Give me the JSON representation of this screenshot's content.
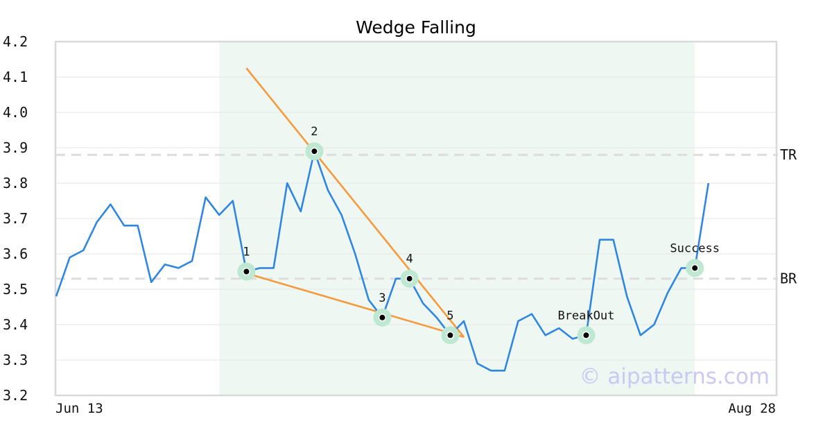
{
  "chart_data": {
    "type": "line",
    "title": "Wedge Falling",
    "xlabel": "",
    "ylabel": "",
    "ylim": [
      3.2,
      4.2
    ],
    "yticks": [
      "4.2",
      "4.1",
      "4.0",
      "3.9",
      "3.8",
      "3.7",
      "3.6",
      "3.5",
      "3.4",
      "3.3",
      "3.2"
    ],
    "x_start_label": "Jun 13",
    "x_end_label": "Aug 28",
    "grid": true,
    "series": [
      {
        "values": [
          3.48,
          3.59,
          3.61,
          3.69,
          3.74,
          3.68,
          3.68,
          3.52,
          3.57,
          3.56,
          3.58,
          3.76,
          3.71,
          3.75,
          3.55,
          3.56,
          3.56,
          3.8,
          3.72,
          3.89,
          3.78,
          3.71,
          3.6,
          3.47,
          3.42,
          3.53,
          3.53,
          3.46,
          3.42,
          3.37,
          3.41,
          3.29,
          3.27,
          3.27,
          3.41,
          3.43,
          3.37,
          3.39,
          3.36,
          3.37,
          3.64,
          3.64,
          3.48,
          3.37,
          3.4,
          3.49,
          3.56,
          3.56,
          3.8
        ],
        "color": "#2f86e0"
      }
    ],
    "highlight_range": [
      12,
      47
    ],
    "levels": [
      {
        "label": "TR",
        "value": 3.88
      },
      {
        "label": "BR",
        "value": 3.53
      }
    ],
    "points": [
      {
        "label": "1",
        "index": 14,
        "value": 3.55
      },
      {
        "label": "2",
        "index": 19,
        "value": 3.89
      },
      {
        "label": "3",
        "index": 24,
        "value": 3.42
      },
      {
        "label": "4",
        "index": 26,
        "value": 3.53
      },
      {
        "label": "5",
        "index": 29,
        "value": 3.37
      },
      {
        "label": "BreakOut",
        "index": 39,
        "value": 3.37
      },
      {
        "label": "Success",
        "index": 47,
        "value": 3.56
      }
    ],
    "trendlines": [
      {
        "from": [
          14,
          4.125
        ],
        "to": [
          30,
          3.365
        ]
      },
      {
        "from": [
          14,
          3.545
        ],
        "to": [
          30,
          3.365
        ]
      }
    ],
    "colors": {
      "line": "#2f86e0",
      "trend": "#f5993c",
      "highlight": "#eef7f2",
      "marker_halo": "#bfe8d2"
    },
    "watermark": "© aipatterns.com"
  }
}
